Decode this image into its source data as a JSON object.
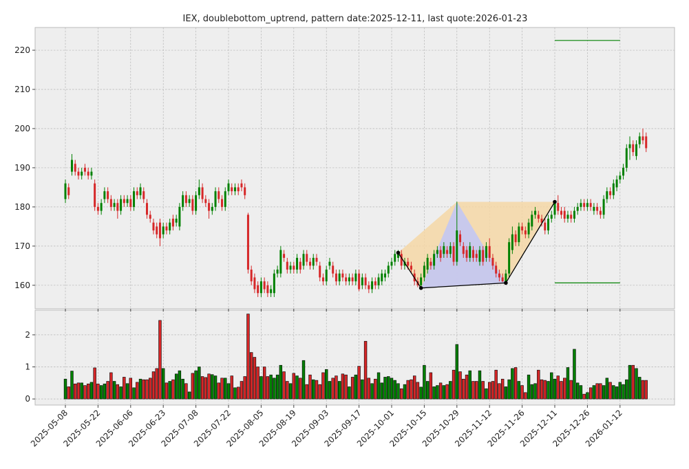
{
  "chart_data": {
    "type": "candlestick",
    "title": "IEX, doublebottom_uptrend, pattern date:2025-12-11, last quote:2026-01-23",
    "categories": [
      "2025-05-08",
      null,
      null,
      null,
      null,
      null,
      null,
      null,
      null,
      null,
      "2025-05-22",
      null,
      null,
      null,
      null,
      null,
      null,
      null,
      null,
      null,
      "2025-06-06",
      null,
      null,
      null,
      null,
      null,
      null,
      null,
      null,
      null,
      "2025-06-23",
      null,
      null,
      null,
      null,
      null,
      null,
      null,
      null,
      null,
      "2025-07-08",
      null,
      null,
      null,
      null,
      null,
      null,
      null,
      null,
      null,
      "2025-07-22",
      null,
      null,
      null,
      null,
      null,
      null,
      null,
      null,
      null,
      "2025-08-05",
      null,
      null,
      null,
      null,
      null,
      null,
      null,
      null,
      null,
      "2025-08-19",
      null,
      null,
      null,
      null,
      null,
      null,
      null,
      null,
      null,
      "2025-09-03",
      null,
      null,
      null,
      null,
      null,
      null,
      null,
      null,
      null,
      "2025-09-17",
      null,
      null,
      null,
      null,
      null,
      null,
      null,
      null,
      null,
      "2025-10-01",
      null,
      null,
      null,
      null,
      null,
      null,
      null,
      null,
      null,
      "2025-10-15",
      null,
      null,
      null,
      null,
      null,
      null,
      null,
      null,
      null,
      "2025-10-29",
      null,
      null,
      null,
      null,
      null,
      null,
      null,
      null,
      null,
      "2025-11-12",
      null,
      null,
      null,
      null,
      null,
      null,
      null,
      null,
      null,
      "2025-11-26",
      null,
      null,
      null,
      null,
      null,
      null,
      null,
      null,
      null,
      "2025-12-11",
      null,
      null,
      null,
      null,
      null,
      null,
      null,
      null,
      null,
      "2025-12-26",
      null,
      null,
      null,
      null,
      null,
      null,
      null,
      null,
      null,
      "2026-01-12",
      null,
      null,
      null,
      null,
      null,
      null,
      null,
      null
    ],
    "open": [
      182,
      185,
      189,
      191,
      189,
      188,
      190,
      189,
      188,
      186,
      180,
      179,
      182,
      184,
      182,
      180,
      181,
      179,
      182,
      181,
      182,
      180,
      184,
      183,
      184,
      181,
      178,
      176,
      175,
      176,
      173,
      175,
      174,
      177,
      176,
      175,
      180,
      183,
      181,
      182,
      179,
      183,
      185,
      182,
      181,
      179,
      180,
      184,
      182,
      180,
      184,
      185,
      184,
      185,
      186,
      185,
      178,
      164,
      162,
      160,
      158,
      161,
      160,
      158,
      158,
      163,
      163,
      168,
      166,
      164,
      165,
      164,
      166,
      165,
      168,
      166,
      165,
      167,
      165,
      162,
      161,
      165,
      165,
      163,
      161,
      163,
      162,
      161,
      162,
      161,
      163,
      160,
      162,
      160,
      159,
      161,
      160,
      161,
      162,
      163,
      165,
      166,
      167,
      168,
      165,
      166,
      165,
      163,
      161,
      160,
      162,
      164,
      166,
      165,
      168,
      169,
      168,
      169,
      168,
      170,
      166,
      173,
      170,
      169,
      167,
      169,
      168,
      166,
      169,
      167,
      170,
      167,
      165,
      163,
      162,
      161,
      163,
      169,
      173,
      171,
      175,
      174,
      173,
      175,
      178,
      178,
      177,
      176,
      174,
      177,
      178,
      181,
      179,
      179,
      177,
      178,
      177,
      179,
      180,
      181,
      180,
      181,
      179,
      180,
      179,
      178,
      182,
      184,
      183,
      185,
      187,
      188,
      190,
      195,
      196,
      193,
      196,
      198,
      198
    ],
    "high": [
      187,
      186,
      193.5,
      192,
      190,
      190,
      191,
      190,
      190,
      187,
      181,
      182,
      185,
      185,
      183,
      182,
      182,
      183,
      183,
      183,
      183,
      185,
      185,
      186,
      185,
      182,
      179,
      177,
      176,
      177,
      176,
      176,
      177,
      178,
      178,
      181,
      184,
      184,
      183,
      183,
      184,
      187,
      186,
      183,
      182,
      181,
      185,
      185,
      183,
      185,
      187,
      186,
      186,
      186,
      187,
      186,
      178.5,
      165,
      163,
      161,
      162,
      162,
      161,
      160,
      164,
      165,
      170,
      169,
      167,
      166,
      166,
      168,
      167,
      169,
      169,
      167,
      168,
      168,
      166,
      163,
      165,
      167,
      166,
      164,
      164,
      164,
      163,
      163,
      163,
      164,
      164,
      163,
      163,
      161,
      162,
      162,
      163,
      164,
      164,
      166,
      167,
      169,
      169,
      169,
      167,
      167,
      166,
      164,
      162,
      163,
      166,
      168,
      167,
      169,
      170,
      170,
      171,
      170,
      171,
      171,
      181.3,
      174,
      171,
      170,
      171,
      170,
      169,
      170,
      170,
      171,
      172,
      168,
      166,
      164,
      163,
      164,
      172,
      175,
      174,
      176,
      176,
      175,
      177,
      179,
      180,
      179,
      178,
      177,
      178,
      179,
      181.3,
      183,
      180,
      180,
      179,
      179,
      180,
      181,
      182,
      182,
      182,
      182,
      181,
      181,
      180,
      183,
      185,
      185,
      187,
      188,
      189,
      191,
      196,
      198,
      197,
      197,
      199,
      200,
      199
    ],
    "low": [
      181,
      182,
      188,
      188,
      187,
      187,
      188,
      187,
      187,
      179,
      178,
      178,
      181,
      181,
      179,
      179,
      177,
      178,
      180,
      180,
      179,
      179,
      182,
      182,
      181,
      177,
      176,
      173,
      172,
      170,
      172,
      173,
      173,
      174,
      175,
      174,
      179,
      180,
      180,
      178,
      178,
      182,
      181,
      180,
      177,
      178,
      179,
      181,
      179,
      179,
      183,
      183,
      183,
      183,
      184,
      182,
      163,
      160,
      158,
      157,
      157,
      158,
      157,
      157,
      157,
      162,
      162,
      166,
      163,
      163,
      163,
      163,
      163,
      164,
      165,
      164,
      164,
      165,
      161,
      160,
      160,
      164,
      162,
      160,
      160,
      161,
      160,
      160,
      160,
      160,
      158.5,
      159,
      159,
      158,
      158,
      159,
      159,
      160,
      161,
      162,
      164,
      165,
      166,
      164,
      164,
      164,
      163,
      160,
      159.5,
      159.3,
      161,
      163,
      164,
      164,
      167,
      166,
      167,
      167,
      167,
      165,
      165,
      170,
      167,
      166,
      166,
      166,
      166,
      165,
      165,
      166,
      166,
      164,
      162,
      161,
      160.8,
      160.6,
      162,
      168,
      170,
      170,
      173,
      172,
      172,
      174,
      177,
      176,
      175,
      173,
      173,
      176,
      177,
      178,
      177,
      176,
      176,
      176,
      176,
      178,
      179,
      179,
      179,
      179,
      178,
      178,
      177,
      177,
      181,
      182,
      182,
      184,
      186,
      187,
      189,
      192,
      193,
      192,
      195,
      196,
      194
    ],
    "close": [
      186,
      183,
      192,
      189,
      188,
      189,
      189,
      188,
      189,
      180,
      179,
      181,
      184,
      182,
      180,
      181,
      179,
      182,
      181,
      182,
      180,
      184,
      183,
      185,
      182,
      178,
      177,
      174,
      173,
      172,
      175,
      174,
      176,
      175,
      177,
      180,
      183,
      181,
      182,
      179,
      183,
      185,
      182,
      181,
      179,
      180,
      184,
      182,
      180,
      184,
      186,
      184,
      185,
      184,
      185,
      183,
      164,
      161,
      159,
      158,
      161,
      159,
      158,
      159,
      163,
      164,
      169,
      167,
      164,
      165,
      164,
      167,
      164,
      168,
      166,
      165,
      167,
      166,
      162,
      161,
      164,
      166,
      163,
      161,
      163,
      162,
      161,
      162,
      161,
      163,
      159,
      162,
      160,
      159,
      161,
      160,
      162,
      163,
      163,
      165,
      166,
      168,
      168,
      165,
      166,
      165,
      164,
      161,
      160,
      162,
      165,
      167,
      165,
      168,
      169,
      167,
      170,
      168,
      170,
      166,
      174,
      171,
      168,
      167,
      170,
      167,
      167,
      169,
      166,
      170,
      167,
      165,
      163,
      162,
      161,
      163,
      171,
      173,
      171,
      175,
      174,
      173,
      176,
      178,
      179,
      177,
      176,
      174,
      177,
      178,
      181,
      179,
      178,
      177,
      178,
      177,
      179,
      180,
      181,
      180,
      181,
      180,
      180,
      179,
      178,
      182,
      184,
      183,
      186,
      187,
      188,
      190,
      195,
      196,
      194,
      196,
      198,
      197,
      195
    ],
    "volume": [
      0.62,
      0.38,
      0.87,
      0.47,
      0.5,
      0.5,
      0.42,
      0.47,
      0.52,
      0.97,
      0.47,
      0.42,
      0.47,
      0.55,
      0.82,
      0.55,
      0.45,
      0.38,
      0.68,
      0.48,
      0.65,
      0.35,
      0.52,
      0.62,
      0.6,
      0.6,
      0.65,
      0.85,
      0.95,
      2.45,
      0.95,
      0.5,
      0.55,
      0.6,
      0.78,
      0.88,
      0.62,
      0.48,
      0.22,
      0.8,
      0.88,
      1.0,
      0.7,
      0.67,
      0.78,
      0.76,
      0.72,
      0.5,
      0.65,
      0.65,
      0.48,
      0.72,
      0.35,
      0.37,
      0.55,
      0.7,
      2.65,
      1.45,
      1.3,
      1.0,
      0.7,
      1.0,
      0.7,
      0.75,
      0.65,
      0.75,
      1.05,
      0.85,
      0.55,
      0.48,
      0.8,
      0.72,
      0.65,
      1.2,
      0.45,
      0.75,
      0.6,
      0.58,
      0.45,
      0.82,
      0.92,
      0.55,
      0.65,
      0.72,
      0.55,
      0.78,
      0.75,
      0.38,
      0.68,
      0.75,
      1.02,
      0.6,
      1.8,
      0.65,
      0.48,
      0.62,
      0.82,
      0.5,
      0.68,
      0.7,
      0.65,
      0.58,
      0.48,
      0.32,
      0.45,
      0.58,
      0.6,
      0.72,
      0.52,
      0.37,
      1.05,
      0.55,
      0.82,
      0.38,
      0.42,
      0.5,
      0.42,
      0.45,
      0.55,
      0.9,
      1.7,
      0.85,
      0.62,
      0.75,
      0.88,
      0.55,
      0.55,
      0.88,
      0.55,
      0.32,
      0.52,
      0.55,
      0.9,
      0.48,
      0.62,
      0.38,
      0.6,
      0.95,
      0.98,
      0.55,
      0.42,
      0.2,
      0.75,
      0.45,
      0.48,
      0.9,
      0.6,
      0.58,
      0.55,
      0.82,
      0.62,
      0.72,
      0.55,
      0.65,
      0.98,
      0.58,
      1.55,
      0.5,
      0.42,
      0.15,
      0.2,
      0.35,
      0.42,
      0.48,
      0.48,
      0.42,
      0.65,
      0.52,
      0.42,
      0.38,
      0.52,
      0.45,
      0.6,
      1.05,
      1.05,
      0.95,
      0.68,
      0.58,
      0.58
    ],
    "up_color": "green",
    "down_color": "#d62728",
    "ylim": [
      154,
      225.8
    ],
    "yticks": [
      160,
      170,
      180,
      190,
      200,
      210,
      220
    ],
    "volume_ylim": [
      -0.19,
      2.77
    ],
    "volume_yticks": [
      0,
      1,
      2
    ],
    "grid": true,
    "pattern": {
      "x": [
        102,
        109,
        135,
        150
      ],
      "y": [
        168.3,
        159.3,
        160.6,
        181.3
      ],
      "apex": {
        "x": 120,
        "y": 181.3
      },
      "line_color": "black",
      "outer_color": "#f5d7a6",
      "inner_color": "#c3c6f3"
    },
    "levels": {
      "x": [
        150,
        170
      ],
      "values": [
        222.5,
        160.6
      ],
      "color": "green"
    }
  }
}
